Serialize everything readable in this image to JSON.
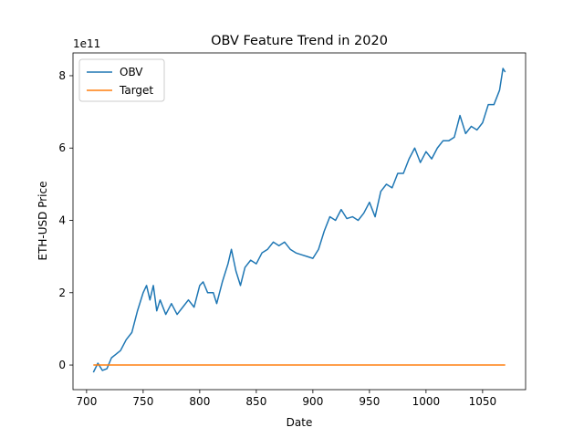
{
  "chart_data": {
    "type": "line",
    "title": "OBV Feature Trend in 2020",
    "x_label": "Date",
    "y_label": "ETH-USD Price",
    "y_offset_label": "1e11",
    "x": [
      706,
      710,
      714,
      718,
      722,
      726,
      730,
      735,
      740,
      745,
      750,
      753,
      756,
      759,
      762,
      765,
      770,
      775,
      780,
      785,
      790,
      795,
      800,
      803,
      807,
      812,
      815,
      820,
      825,
      828,
      832,
      836,
      840,
      845,
      850,
      855,
      860,
      865,
      870,
      875,
      880,
      885,
      890,
      895,
      900,
      905,
      910,
      915,
      920,
      925,
      930,
      935,
      940,
      945,
      950,
      955,
      960,
      965,
      970,
      975,
      980,
      985,
      990,
      995,
      1000,
      1005,
      1010,
      1015,
      1020,
      1025,
      1030,
      1035,
      1040,
      1045,
      1050,
      1055,
      1060,
      1065,
      1068,
      1070
    ],
    "series": [
      {
        "name": "OBV",
        "color": "#1f77b4",
        "values": [
          -0.2,
          0.05,
          -0.15,
          -0.1,
          0.2,
          0.3,
          0.4,
          0.7,
          0.9,
          1.5,
          2.0,
          2.2,
          1.8,
          2.2,
          1.5,
          1.8,
          1.4,
          1.7,
          1.4,
          1.6,
          1.8,
          1.6,
          2.2,
          2.3,
          2.0,
          2.0,
          1.7,
          2.3,
          2.8,
          3.2,
          2.6,
          2.2,
          2.7,
          2.9,
          2.8,
          3.1,
          3.2,
          3.4,
          3.3,
          3.4,
          3.2,
          3.1,
          3.05,
          3.0,
          2.95,
          3.2,
          3.7,
          4.1,
          4.0,
          4.3,
          4.05,
          4.1,
          4.0,
          4.2,
          4.5,
          4.1,
          4.8,
          5.0,
          4.9,
          5.3,
          5.3,
          5.7,
          6.0,
          5.6,
          5.9,
          5.7,
          6.0,
          6.2,
          6.2,
          6.3,
          6.9,
          6.4,
          6.6,
          6.5,
          6.7,
          7.2,
          7.2,
          7.6,
          8.2,
          8.1
        ]
      },
      {
        "name": "Target",
        "color": "#ff7f0e",
        "values": [
          0,
          0,
          0,
          0,
          0,
          0,
          0,
          0,
          0,
          0,
          0,
          0,
          0,
          0,
          0,
          0,
          0,
          0,
          0,
          0,
          0,
          0,
          0,
          0,
          0,
          0,
          0,
          0,
          0,
          0,
          0,
          0,
          0,
          0,
          0,
          0,
          0,
          0,
          0,
          0,
          0,
          0,
          0,
          0,
          0,
          0,
          0,
          0,
          0,
          0,
          0,
          0,
          0,
          0,
          0,
          0,
          0,
          0,
          0,
          0,
          0,
          0,
          0,
          0,
          0,
          0,
          0,
          0,
          0,
          0,
          0,
          0,
          0,
          0,
          0,
          0,
          0,
          0,
          0,
          0
        ]
      }
    ],
    "xlim": [
      688,
      1088
    ],
    "ylim": [
      -0.68,
      8.63
    ],
    "xticks": [
      700,
      750,
      800,
      850,
      900,
      950,
      1000,
      1050
    ],
    "yticks": [
      0,
      2,
      4,
      6,
      8
    ],
    "grid": false,
    "legend": "upper-left"
  }
}
